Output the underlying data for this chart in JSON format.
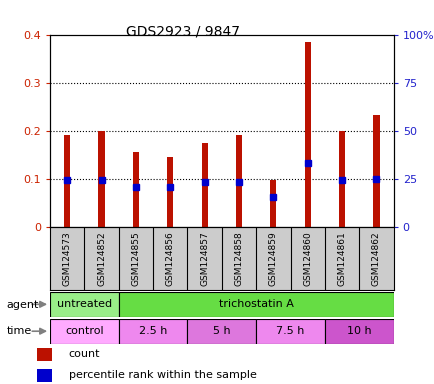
{
  "title": "GDS2923 / 9847",
  "samples": [
    "GSM124573",
    "GSM124852",
    "GSM124855",
    "GSM124856",
    "GSM124857",
    "GSM124858",
    "GSM124859",
    "GSM124860",
    "GSM124861",
    "GSM124862"
  ],
  "count_values": [
    0.19,
    0.2,
    0.155,
    0.145,
    0.175,
    0.19,
    0.097,
    0.385,
    0.2,
    0.232
  ],
  "percentile_values": [
    0.098,
    0.097,
    0.082,
    0.082,
    0.092,
    0.092,
    0.062,
    0.132,
    0.097,
    0.1
  ],
  "bar_color": "#BB1100",
  "percentile_color": "#0000CC",
  "ylim_left": [
    0,
    0.4
  ],
  "ylim_right": [
    0,
    100
  ],
  "yticks_left": [
    0,
    0.1,
    0.2,
    0.3,
    0.4
  ],
  "yticks_right": [
    0,
    25,
    50,
    75,
    100
  ],
  "yticklabels_left": [
    "0",
    "0.1",
    "0.2",
    "0.3",
    "0.4"
  ],
  "yticklabels_right": [
    "0",
    "25",
    "50",
    "75",
    "100%"
  ],
  "agent_labels": [
    {
      "text": "untreated",
      "start": 0,
      "end": 2,
      "color": "#99EE88"
    },
    {
      "text": "trichostatin A",
      "start": 2,
      "end": 10,
      "color": "#66DD44"
    }
  ],
  "time_labels": [
    {
      "text": "control",
      "start": 0,
      "end": 2,
      "color": "#FFAAFF"
    },
    {
      "text": "2.5 h",
      "start": 2,
      "end": 4,
      "color": "#EE88EE"
    },
    {
      "text": "5 h",
      "start": 4,
      "end": 6,
      "color": "#DD77DD"
    },
    {
      "text": "7.5 h",
      "start": 6,
      "end": 8,
      "color": "#EE88EE"
    },
    {
      "text": "10 h",
      "start": 8,
      "end": 10,
      "color": "#CC55CC"
    }
  ],
  "legend_items": [
    {
      "label": "count",
      "color": "#BB1100"
    },
    {
      "label": "percentile rank within the sample",
      "color": "#0000CC"
    }
  ],
  "label_color_left": "#CC2200",
  "label_color_right": "#2222CC",
  "tick_gray": "#888888",
  "sample_bg": "#CCCCCC"
}
